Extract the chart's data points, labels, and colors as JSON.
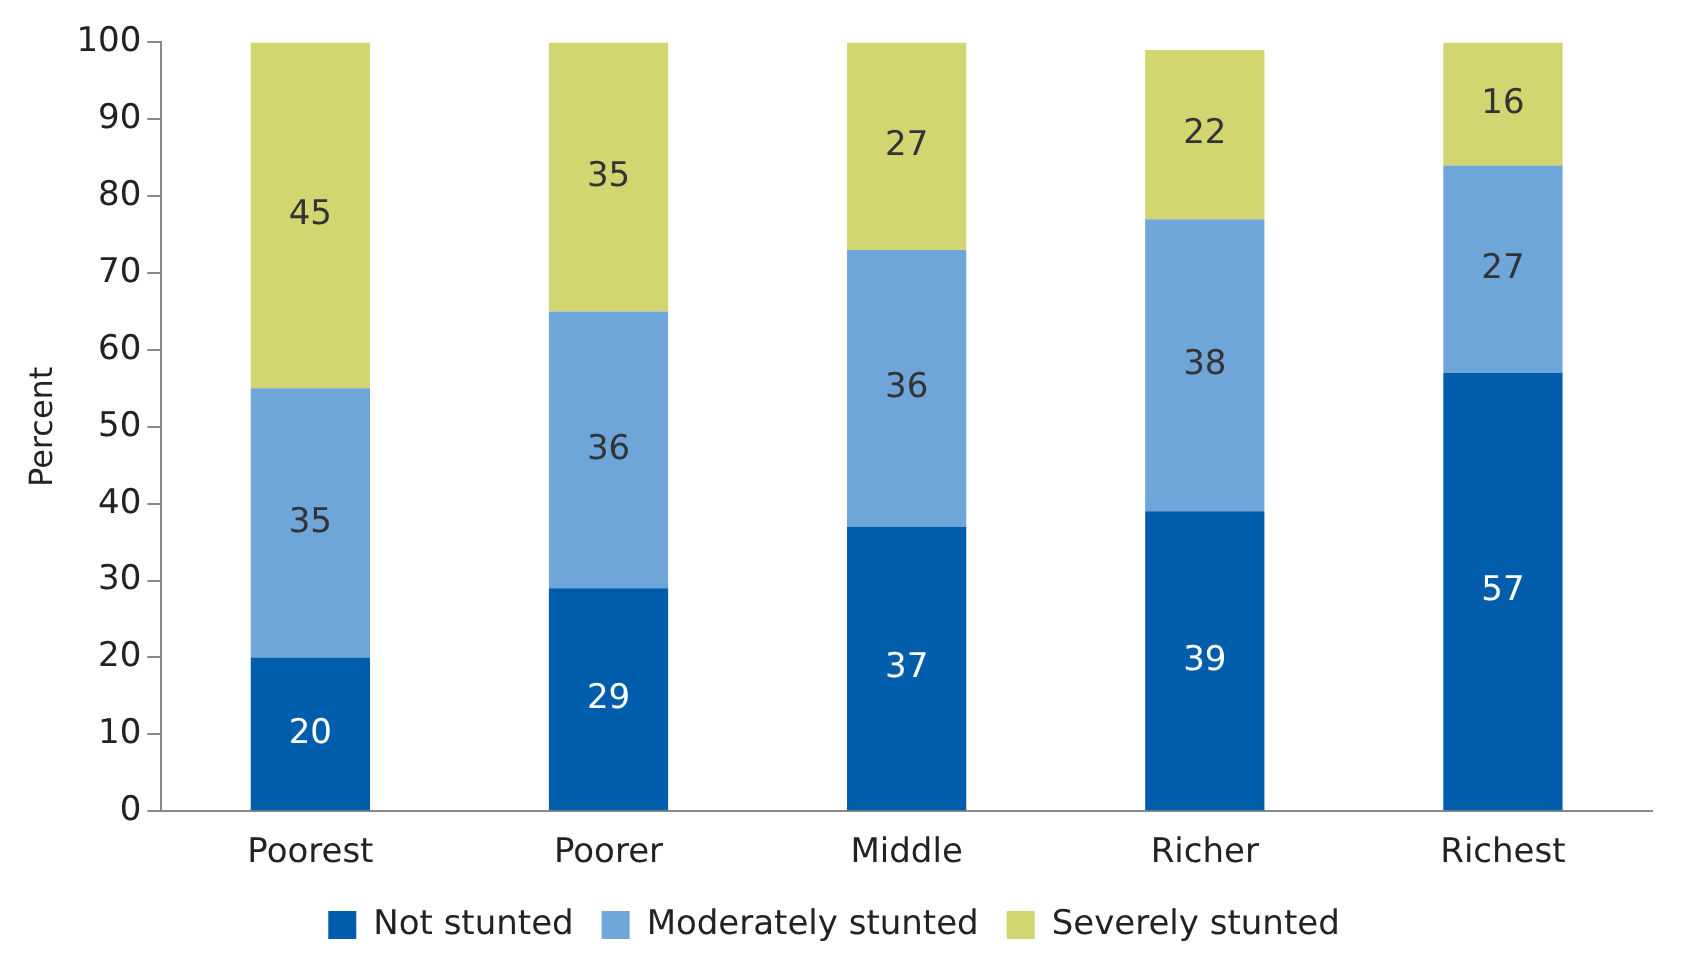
{
  "chart_data": {
    "type": "bar",
    "stacked": true,
    "ylabel": "Percent",
    "categories": [
      "Poorest",
      "Poorer",
      "Middle",
      "Richer",
      "Richest"
    ],
    "series": [
      {
        "name": "Not stunted",
        "color": "#005dab",
        "values": [
          20,
          29,
          37,
          39,
          57
        ]
      },
      {
        "name": "Moderately stunted",
        "color": "#6fa6da",
        "values": [
          35,
          36,
          36,
          38,
          27
        ]
      },
      {
        "name": "Severely stunted",
        "color": "#d3d670",
        "values": [
          45,
          35,
          27,
          22,
          16
        ]
      }
    ],
    "ylim": [
      0,
      100
    ],
    "yticks": [
      0,
      10,
      20,
      30,
      40,
      50,
      60,
      70,
      80,
      90,
      100
    ],
    "data_labels": true,
    "legend": "bottom",
    "grid": false
  }
}
